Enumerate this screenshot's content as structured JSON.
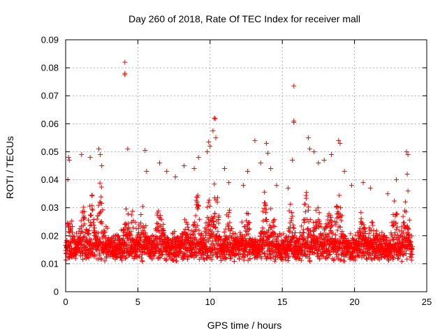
{
  "chart_data": {
    "type": "scatter",
    "title": "Day 260 of 2018, Rate Of TEC Index for receiver mall",
    "xlabel": "GPS time / hours",
    "ylabel": "ROTI / TECUs",
    "xlim": [
      0,
      25
    ],
    "ylim": [
      0,
      0.09
    ],
    "xticks": [
      0,
      5,
      10,
      15,
      20,
      25
    ],
    "xtick_labels": [
      "0",
      "5",
      "10",
      "15",
      "20",
      "25"
    ],
    "yticks": [
      0,
      0.01,
      0.02,
      0.03,
      0.04,
      0.05,
      0.06,
      0.07,
      0.08,
      0.09
    ],
    "ytick_labels": [
      "0",
      "0.01",
      "0.02",
      "0.03",
      "0.04",
      "0.05",
      "0.06",
      "0.07",
      "0.08",
      "0.09"
    ],
    "grid": true,
    "marker": "+",
    "color": "#ff0000",
    "series": [
      {
        "name": "mall",
        "description": "dense band of ROTI samples every ~30 s from 0 to 24 h, mostly 0.005-0.025 TECU/min",
        "x_range": [
          0,
          24
        ],
        "typical_range": [
          0.005,
          0.025
        ],
        "n_points_approx": 2880,
        "outliers": [
          {
            "x": 4.1,
            "y": 0.082
          },
          {
            "x": 4.1,
            "y": 0.078
          },
          {
            "x": 4.1,
            "y": 0.0775
          },
          {
            "x": 15.8,
            "y": 0.0735
          },
          {
            "x": 15.8,
            "y": 0.061
          },
          {
            "x": 15.8,
            "y": 0.0605
          },
          {
            "x": 10.3,
            "y": 0.062
          },
          {
            "x": 10.35,
            "y": 0.0618
          },
          {
            "x": 10.2,
            "y": 0.0575
          },
          {
            "x": 10.4,
            "y": 0.055
          },
          {
            "x": 9.9,
            "y": 0.0535
          },
          {
            "x": 10.0,
            "y": 0.052
          },
          {
            "x": 9.8,
            "y": 0.05
          },
          {
            "x": 0.2,
            "y": 0.048
          },
          {
            "x": 0.25,
            "y": 0.047
          },
          {
            "x": 0.15,
            "y": 0.04
          },
          {
            "x": 1.1,
            "y": 0.049
          },
          {
            "x": 1.7,
            "y": 0.048
          },
          {
            "x": 2.3,
            "y": 0.051
          },
          {
            "x": 2.4,
            "y": 0.049
          },
          {
            "x": 2.5,
            "y": 0.045
          },
          {
            "x": 4.3,
            "y": 0.051
          },
          {
            "x": 5.5,
            "y": 0.0505
          },
          {
            "x": 5.6,
            "y": 0.043
          },
          {
            "x": 6.5,
            "y": 0.046
          },
          {
            "x": 7.0,
            "y": 0.043
          },
          {
            "x": 7.6,
            "y": 0.041
          },
          {
            "x": 8.2,
            "y": 0.045
          },
          {
            "x": 8.9,
            "y": 0.044
          },
          {
            "x": 9.2,
            "y": 0.048
          },
          {
            "x": 11.0,
            "y": 0.044
          },
          {
            "x": 11.3,
            "y": 0.039
          },
          {
            "x": 12.3,
            "y": 0.038
          },
          {
            "x": 12.6,
            "y": 0.043
          },
          {
            "x": 13.1,
            "y": 0.054
          },
          {
            "x": 13.5,
            "y": 0.046
          },
          {
            "x": 13.9,
            "y": 0.053
          },
          {
            "x": 14.0,
            "y": 0.0495
          },
          {
            "x": 14.2,
            "y": 0.044
          },
          {
            "x": 14.6,
            "y": 0.038
          },
          {
            "x": 15.4,
            "y": 0.037
          },
          {
            "x": 15.7,
            "y": 0.047
          },
          {
            "x": 16.8,
            "y": 0.055
          },
          {
            "x": 16.9,
            "y": 0.051
          },
          {
            "x": 17.2,
            "y": 0.05
          },
          {
            "x": 17.5,
            "y": 0.046
          },
          {
            "x": 17.9,
            "y": 0.047
          },
          {
            "x": 18.4,
            "y": 0.049
          },
          {
            "x": 18.9,
            "y": 0.054
          },
          {
            "x": 19.0,
            "y": 0.053
          },
          {
            "x": 19.3,
            "y": 0.043
          },
          {
            "x": 19.8,
            "y": 0.038
          },
          {
            "x": 20.6,
            "y": 0.039
          },
          {
            "x": 21.1,
            "y": 0.037
          },
          {
            "x": 22.3,
            "y": 0.035
          },
          {
            "x": 22.9,
            "y": 0.04
          },
          {
            "x": 23.6,
            "y": 0.05
          },
          {
            "x": 23.7,
            "y": 0.049
          },
          {
            "x": 23.65,
            "y": 0.042
          },
          {
            "x": 23.7,
            "y": 0.036
          }
        ],
        "activity_bursts": [
          {
            "x": 0.3,
            "height": 0.03
          },
          {
            "x": 1.2,
            "height": 0.035
          },
          {
            "x": 1.8,
            "height": 0.036
          },
          {
            "x": 2.4,
            "height": 0.04
          },
          {
            "x": 4.2,
            "height": 0.03
          },
          {
            "x": 4.6,
            "height": 0.033
          },
          {
            "x": 5.3,
            "height": 0.032
          },
          {
            "x": 6.5,
            "height": 0.036
          },
          {
            "x": 8.3,
            "height": 0.03
          },
          {
            "x": 9.1,
            "height": 0.036
          },
          {
            "x": 9.9,
            "height": 0.038
          },
          {
            "x": 10.4,
            "height": 0.04
          },
          {
            "x": 11.3,
            "height": 0.031
          },
          {
            "x": 12.5,
            "height": 0.03
          },
          {
            "x": 13.8,
            "height": 0.035
          },
          {
            "x": 14.3,
            "height": 0.032
          },
          {
            "x": 15.6,
            "height": 0.034
          },
          {
            "x": 16.7,
            "height": 0.037
          },
          {
            "x": 17.4,
            "height": 0.038
          },
          {
            "x": 18.2,
            "height": 0.035
          },
          {
            "x": 18.9,
            "height": 0.037
          },
          {
            "x": 20.5,
            "height": 0.03
          },
          {
            "x": 21.2,
            "height": 0.03
          },
          {
            "x": 22.8,
            "height": 0.033
          },
          {
            "x": 23.5,
            "height": 0.034
          }
        ]
      }
    ]
  }
}
